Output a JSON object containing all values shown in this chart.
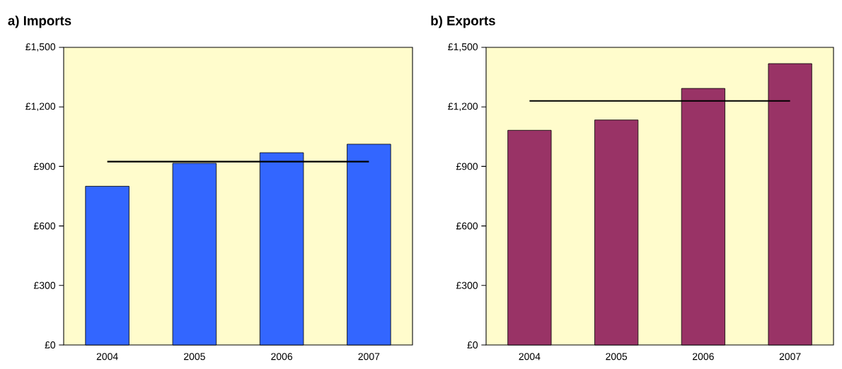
{
  "chart_data": [
    {
      "type": "bar",
      "title": "a) Imports",
      "categories": [
        "2004",
        "2005",
        "2006",
        "2007"
      ],
      "series": [
        {
          "color": "#3366ff",
          "values": [
            800,
            916,
            969,
            1012
          ]
        },
        {
          "type": "line",
          "color": "#000000",
          "values": [
            924,
            924,
            924,
            924
          ]
        }
      ],
      "ylim": [
        0,
        1500
      ],
      "yticks": [
        {
          "value": 0,
          "label": "£0"
        },
        {
          "value": 300,
          "label": "£300"
        },
        {
          "value": 600,
          "label": "£600"
        },
        {
          "value": 900,
          "label": "£900"
        },
        {
          "value": 1200,
          "label": "£1,200"
        },
        {
          "value": 1500,
          "label": "£1,500"
        }
      ]
    },
    {
      "type": "bar",
      "title": "b) Exports",
      "categories": [
        "2004",
        "2005",
        "2006",
        "2007"
      ],
      "series": [
        {
          "color": "#993366",
          "values": [
            1082,
            1134,
            1293,
            1418
          ]
        },
        {
          "type": "line",
          "color": "#000000",
          "values": [
            1230,
            1230,
            1230,
            1230
          ]
        }
      ],
      "ylim": [
        0,
        1500
      ],
      "yticks": [
        {
          "value": 0,
          "label": "£0"
        },
        {
          "value": 300,
          "label": "£300"
        },
        {
          "value": 600,
          "label": "£600"
        },
        {
          "value": 900,
          "label": "£900"
        },
        {
          "value": 1200,
          "label": "£1,200"
        },
        {
          "value": 1500,
          "label": "£1,500"
        }
      ]
    }
  ]
}
